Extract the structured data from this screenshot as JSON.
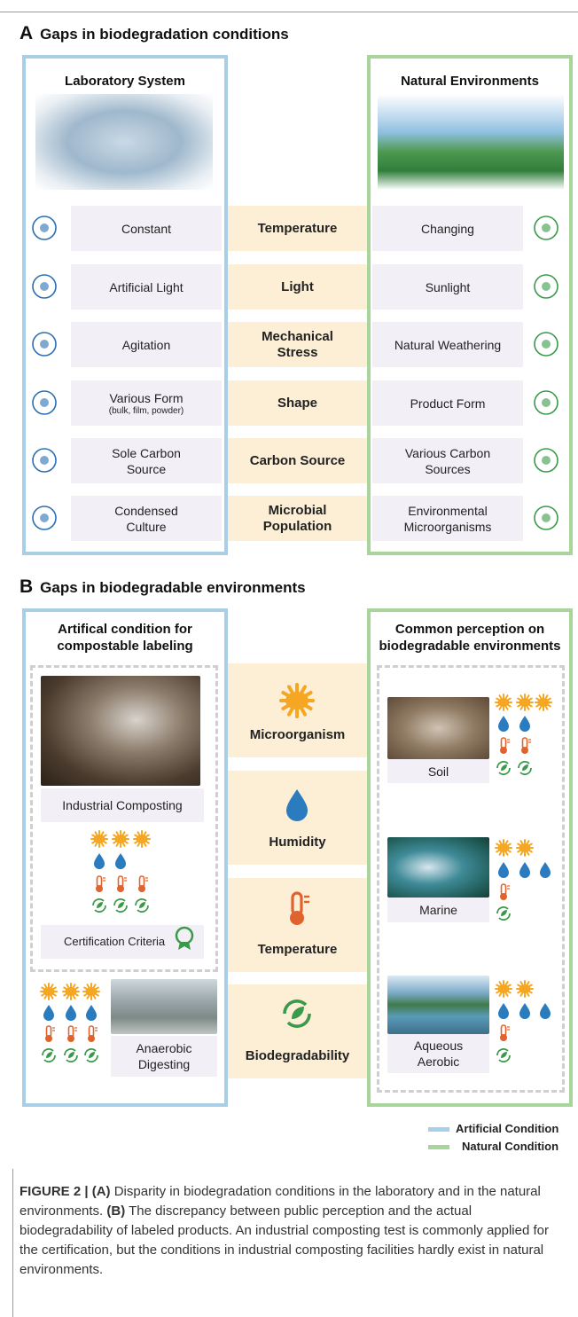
{
  "panel_a": {
    "label": "A",
    "title": "Gaps in biodegradation conditions",
    "left_heading": "Laboratory System",
    "right_heading": "Natural Environments",
    "rows": [
      {
        "left": "Constant",
        "center": "Temperature",
        "right": "Changing"
      },
      {
        "left": "Artificial Light",
        "center": "Light",
        "right": "Sunlight"
      },
      {
        "left": "Agitation",
        "center": "Mechanical Stress",
        "right": "Natural Weathering"
      },
      {
        "left": "Various Form",
        "left_note": "(bulk, film, powder)",
        "center": "Shape",
        "right": "Product Form"
      },
      {
        "left": "Sole Carbon Source",
        "center": "Carbon Source",
        "right": "Various Carbon Sources"
      },
      {
        "left": "Condensed Culture",
        "center": "Microbial Population",
        "right": "Environmental Microorganisms"
      }
    ]
  },
  "panel_b": {
    "label": "B",
    "title": "Gaps in biodegradable environments",
    "left_heading": "Artifical condition for compostable labeling",
    "right_heading": "Common perception on biodegradable environments",
    "center": [
      "Microorganism",
      "Humidity",
      "Temperature",
      "Biodegradability"
    ],
    "industrial": "Industrial Composting",
    "criteria": "Certification Criteria",
    "anaerobic": "Anaerobic Digesting",
    "environments": [
      "Soil",
      "Marine",
      "Aqueous Aerobic"
    ]
  },
  "legend": [
    "Artificial Condition",
    "Natural Condition"
  ],
  "caption": {
    "label": "FIGURE 2 |",
    "a": "(A)",
    "a_text": "Disparity in biodegradation conditions in the laboratory and in the natural environments.",
    "b": "(B)",
    "b_text": "The discrepancy between public perception and the actual biodegradability of labeled products. An industrial composting test is commonly applied for the certification, but the conditions in industrial composting facilities hardly exist in natural environments."
  }
}
